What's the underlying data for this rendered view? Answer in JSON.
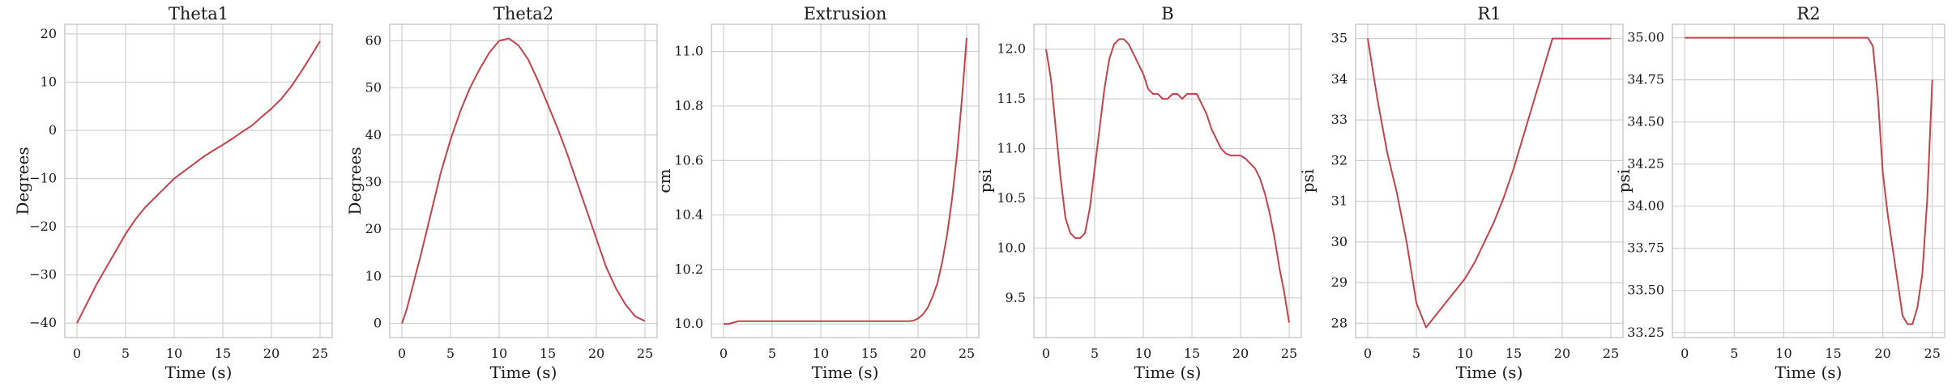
{
  "line_color": "#c4424b",
  "grid_color": "#d0d0d0",
  "spine_color": "#bdbdbd",
  "chart_data": [
    {
      "type": "line",
      "title": "Theta1",
      "xlabel": "Time (s)",
      "ylabel": "Degrees",
      "xlim": [
        -1.25,
        26.25
      ],
      "ylim": [
        -43,
        22
      ],
      "xticks": [
        0,
        5,
        10,
        15,
        20,
        25
      ],
      "yticks": [
        -40,
        -30,
        -20,
        -10,
        0,
        10,
        20
      ],
      "ytick_labels": [
        "−40",
        "−30",
        "−20",
        "−10",
        "0",
        "10",
        "20"
      ],
      "grid": true,
      "series": [
        {
          "x": [
            0,
            1,
            2,
            3,
            4,
            5,
            6,
            7,
            8,
            9,
            10,
            11,
            12,
            13,
            14,
            15,
            16,
            17,
            18,
            19,
            20,
            21,
            22,
            23,
            24,
            25
          ],
          "y": [
            -40,
            -36,
            -32,
            -28.5,
            -25,
            -21.5,
            -18.5,
            -16,
            -14,
            -12,
            -10,
            -8.5,
            -7,
            -5.5,
            -4.2,
            -3,
            -1.7,
            -0.3,
            1,
            2.8,
            4.5,
            6.5,
            9,
            12,
            15.2,
            18.5
          ]
        }
      ]
    },
    {
      "type": "line",
      "title": "Theta2",
      "xlabel": "Time (s)",
      "ylabel": "Degrees",
      "xlim": [
        -1.25,
        26.25
      ],
      "ylim": [
        -3,
        63.5
      ],
      "xticks": [
        0,
        5,
        10,
        15,
        20,
        25
      ],
      "yticks": [
        0,
        10,
        20,
        30,
        40,
        50,
        60
      ],
      "ytick_labels": [
        "0",
        "10",
        "20",
        "30",
        "40",
        "50",
        "60"
      ],
      "grid": true,
      "series": [
        {
          "x": [
            0,
            0.5,
            1,
            2,
            3,
            4,
            5,
            6,
            7,
            8,
            9,
            10,
            11,
            12,
            13,
            14,
            15,
            16,
            17,
            18,
            19,
            20,
            21,
            22,
            23,
            24,
            25
          ],
          "y": [
            0,
            3,
            7,
            15,
            23.5,
            32,
            39,
            45,
            50,
            54,
            57.5,
            60,
            60.5,
            59,
            56,
            51.5,
            46.5,
            41.5,
            36,
            30,
            24,
            18,
            12,
            7.5,
            4,
            1.5,
            0.5
          ]
        }
      ]
    },
    {
      "type": "line",
      "title": "Extrusion",
      "xlabel": "Time (s)",
      "ylabel": "cm",
      "xlim": [
        -1.25,
        26.25
      ],
      "ylim": [
        9.95,
        11.1
      ],
      "xticks": [
        0,
        5,
        10,
        15,
        20,
        25
      ],
      "yticks": [
        10.0,
        10.2,
        10.4,
        10.6,
        10.8,
        11.0
      ],
      "ytick_labels": [
        "10.0",
        "10.2",
        "10.4",
        "10.6",
        "10.8",
        "11.0"
      ],
      "grid": true,
      "series": [
        {
          "x": [
            0,
            0.5,
            1,
            1.5,
            2,
            5,
            10,
            15,
            19,
            19.5,
            20,
            20.5,
            21,
            21.5,
            22,
            22.5,
            23,
            23.5,
            24,
            24.5,
            25
          ],
          "y": [
            10.0,
            10.0,
            10.005,
            10.01,
            10.01,
            10.01,
            10.01,
            10.01,
            10.01,
            10.012,
            10.02,
            10.035,
            10.06,
            10.1,
            10.15,
            10.23,
            10.33,
            10.46,
            10.62,
            10.82,
            11.05
          ]
        }
      ]
    },
    {
      "type": "line",
      "title": "B",
      "xlabel": "Time (s)",
      "ylabel": "psi",
      "xlim": [
        -1.25,
        26.25
      ],
      "ylim": [
        9.1,
        12.25
      ],
      "xticks": [
        0,
        5,
        10,
        15,
        20,
        25
      ],
      "yticks": [
        9.5,
        10.0,
        10.5,
        11.0,
        11.5,
        12.0
      ],
      "ytick_labels": [
        "9.5",
        "10.0",
        "10.5",
        "11.0",
        "11.5",
        "12.0"
      ],
      "grid": true,
      "series": [
        {
          "x": [
            0,
            0.5,
            1,
            1.5,
            2,
            2.5,
            3,
            3.5,
            4,
            4.5,
            5,
            5.5,
            6,
            6.5,
            7,
            7.5,
            8,
            8.5,
            9,
            9.5,
            10,
            10.5,
            11,
            11.5,
            12,
            12.5,
            13,
            13.5,
            14,
            14.5,
            15,
            15.5,
            16,
            16.5,
            17,
            17.5,
            18,
            18.5,
            19,
            19.5,
            20,
            20.5,
            21,
            21.5,
            22,
            22.5,
            23,
            23.5,
            24,
            24.5,
            25
          ],
          "y": [
            12.0,
            11.7,
            11.2,
            10.7,
            10.3,
            10.15,
            10.1,
            10.1,
            10.15,
            10.4,
            10.8,
            11.2,
            11.6,
            11.9,
            12.05,
            12.1,
            12.1,
            12.05,
            11.95,
            11.85,
            11.75,
            11.6,
            11.55,
            11.55,
            11.5,
            11.5,
            11.55,
            11.55,
            11.5,
            11.55,
            11.55,
            11.55,
            11.45,
            11.35,
            11.2,
            11.1,
            11.0,
            10.95,
            10.93,
            10.93,
            10.93,
            10.9,
            10.85,
            10.8,
            10.7,
            10.55,
            10.35,
            10.1,
            9.8,
            9.55,
            9.25
          ]
        }
      ]
    },
    {
      "type": "line",
      "title": "R1",
      "xlabel": "Time (s)",
      "ylabel": "psi",
      "xlim": [
        -1.25,
        26.25
      ],
      "ylim": [
        27.65,
        35.35
      ],
      "xticks": [
        0,
        5,
        10,
        15,
        20,
        25
      ],
      "yticks": [
        28,
        29,
        30,
        31,
        32,
        33,
        34,
        35
      ],
      "ytick_labels": [
        "28",
        "29",
        "30",
        "31",
        "32",
        "33",
        "34",
        "35"
      ],
      "grid": true,
      "series": [
        {
          "x": [
            0,
            1,
            2,
            3,
            4,
            5,
            6,
            7,
            8,
            9,
            10,
            11,
            12,
            13,
            14,
            15,
            16,
            17,
            18,
            19,
            20,
            21,
            22,
            23,
            24,
            25
          ],
          "y": [
            35,
            33.5,
            32.2,
            31.2,
            30.0,
            28.5,
            27.9,
            28.2,
            28.5,
            28.8,
            29.1,
            29.5,
            30.0,
            30.5,
            31.1,
            31.8,
            32.6,
            33.4,
            34.2,
            35,
            35,
            35,
            35,
            35,
            35,
            35
          ]
        }
      ]
    },
    {
      "type": "line",
      "title": "R2",
      "xlabel": "Time (s)",
      "ylabel": "psi",
      "xlim": [
        -1.25,
        26.25
      ],
      "ylim": [
        33.22,
        35.08
      ],
      "xticks": [
        0,
        5,
        10,
        15,
        20,
        25
      ],
      "yticks": [
        33.25,
        33.5,
        33.75,
        34.0,
        34.25,
        34.5,
        34.75,
        35.0
      ],
      "ytick_labels": [
        "33.25",
        "33.50",
        "33.75",
        "34.00",
        "34.25",
        "34.50",
        "34.75",
        "35.00"
      ],
      "grid": true,
      "series": [
        {
          "x": [
            0,
            5,
            10,
            15,
            18.5,
            19,
            19.5,
            20,
            20.5,
            21,
            21.5,
            22,
            22.5,
            23,
            23.5,
            24,
            24.5,
            25
          ],
          "y": [
            35,
            35,
            35,
            35,
            35,
            34.95,
            34.65,
            34.2,
            33.95,
            33.75,
            33.55,
            33.35,
            33.3,
            33.3,
            33.4,
            33.6,
            34.05,
            34.75
          ]
        }
      ]
    }
  ]
}
